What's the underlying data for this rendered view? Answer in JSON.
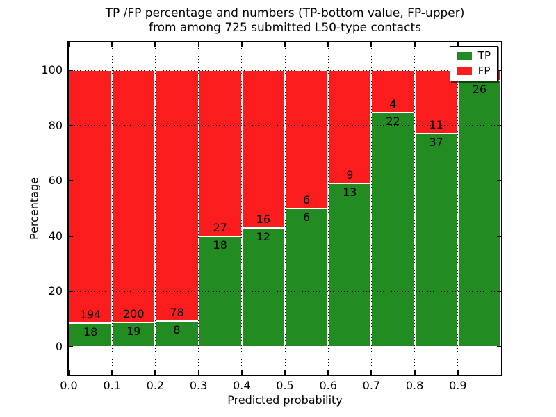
{
  "title": {
    "line1": "TP /FP percentage and numbers (TP-bottom value, FP-upper)",
    "line2": "from among 725 submitted L50-type contacts"
  },
  "chart_data": {
    "type": "bar",
    "stacked": true,
    "title": "TP /FP percentage and numbers (TP-bottom value, FP-upper) from among 725 submitted L50-type contacts",
    "xlabel": "Predicted probability",
    "ylabel": "Percentage",
    "x_ticks": [
      "0.0",
      "0.1",
      "0.2",
      "0.3",
      "0.4",
      "0.5",
      "0.6",
      "0.7",
      "0.8",
      "0.9"
    ],
    "y_ticks": [
      0,
      20,
      40,
      60,
      80,
      100
    ],
    "xlim": [
      0,
      1
    ],
    "ylim": [
      -10,
      110
    ],
    "grid": true,
    "legend": {
      "position": "upper-right",
      "entries": [
        {
          "label": "TP",
          "color": "#228b22"
        },
        {
          "label": "FP",
          "color": "#fb1d1d"
        }
      ]
    },
    "bars": [
      {
        "x_start": 0.0,
        "x_end": 0.1,
        "tp_count": 18,
        "fp_count": 194,
        "tp_label": "18",
        "fp_label": "194",
        "tp_pct": 8.49
      },
      {
        "x_start": 0.1,
        "x_end": 0.2,
        "tp_count": 19,
        "fp_count": 200,
        "tp_label": "19",
        "fp_label": "200",
        "tp_pct": 8.68
      },
      {
        "x_start": 0.2,
        "x_end": 0.3,
        "tp_count": 8,
        "fp_count": 78,
        "tp_label": "8",
        "fp_label": "78",
        "tp_pct": 9.3
      },
      {
        "x_start": 0.3,
        "x_end": 0.4,
        "tp_count": 18,
        "fp_count": 27,
        "tp_label": "18",
        "fp_label": "27",
        "tp_pct": 40.0
      },
      {
        "x_start": 0.4,
        "x_end": 0.5,
        "tp_count": 12,
        "fp_count": 16,
        "tp_label": "12",
        "fp_label": "16",
        "tp_pct": 42.86
      },
      {
        "x_start": 0.5,
        "x_end": 0.6,
        "tp_count": 6,
        "fp_count": 6,
        "tp_label": "6",
        "fp_label": "6",
        "tp_pct": 50.0
      },
      {
        "x_start": 0.6,
        "x_end": 0.7,
        "tp_count": 13,
        "fp_count": 9,
        "tp_label": "13",
        "fp_label": "9",
        "tp_pct": 59.09
      },
      {
        "x_start": 0.7,
        "x_end": 0.8,
        "tp_count": 22,
        "fp_count": 4,
        "tp_label": "22",
        "fp_label": "4",
        "tp_pct": 84.62
      },
      {
        "x_start": 0.8,
        "x_end": 0.9,
        "tp_count": 37,
        "fp_count": 11,
        "tp_label": "37",
        "fp_label": "11",
        "tp_pct": 77.08
      },
      {
        "x_start": 0.9,
        "x_end": 1.0,
        "tp_count": 26,
        "tp_label": "26",
        "fp_label": "",
        "tp_pct": 96.3
      }
    ]
  },
  "colors": {
    "tp": "#228b22",
    "fp": "#fb1d1d",
    "grid": "#000000",
    "text": "#000000",
    "background": "#ffffff"
  }
}
